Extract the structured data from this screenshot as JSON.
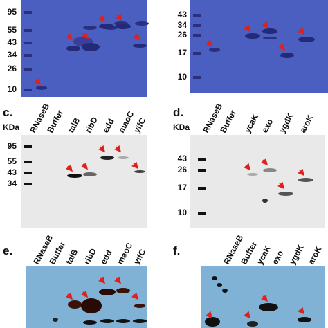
{
  "panels": [
    {
      "markers": [
        "95",
        "55",
        "43",
        "34",
        "26",
        "10"
      ]
    },
    {
      "markers": [
        "43",
        "34",
        "26",
        "17",
        "10"
      ]
    },
    {
      "label": "c.",
      "unit": "KDa",
      "lanes": [
        "RNaseB",
        "Buffer",
        "talB",
        "ribD",
        "edd",
        "maoC",
        "yifC"
      ],
      "markers": [
        "95",
        "55",
        "43",
        "34"
      ]
    },
    {
      "label": "d.",
      "unit": "KDa",
      "lanes": [
        "RNaseB",
        "Buffer",
        "ycaK",
        "exo",
        "ygdK",
        "aroK"
      ],
      "markers": [
        "43",
        "26",
        "17",
        "10"
      ]
    },
    {
      "label": "e.",
      "lanes": [
        "RNaseB",
        "Buffer",
        "talB",
        "ribD",
        "edd",
        "maoC",
        "yifC"
      ]
    },
    {
      "label": "f.",
      "lanes": [
        "RNaseB",
        "Buffer",
        "ycaK",
        "exo",
        "ygdK",
        "aroK"
      ]
    }
  ]
}
